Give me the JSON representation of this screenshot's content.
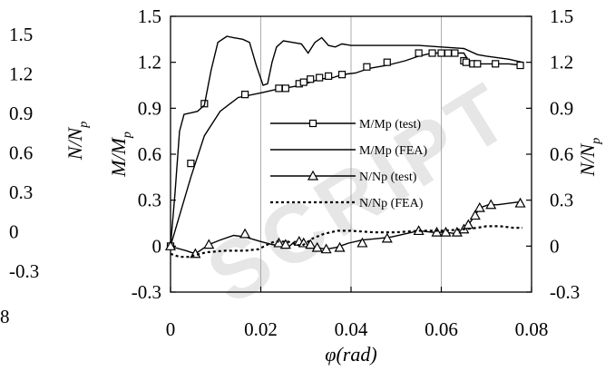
{
  "chart_data": {
    "type": "line",
    "title": "",
    "xlabel": "φ(rad)",
    "ylabel_left": "M/M",
    "ylabel_left_sub": "p",
    "ylabel_right": "N/N",
    "ylabel_right_sub": "p",
    "ylabel_far_left": "N/N",
    "ylabel_far_left_sub": "p",
    "xlim": [
      0,
      0.08
    ],
    "ylim": [
      -0.3,
      1.5
    ],
    "x_ticks": [
      "0",
      "0.02",
      "0.04",
      "0.06",
      "0.08"
    ],
    "y_ticks": [
      "-0.3",
      "0",
      "0.3",
      "0.6",
      "0.9",
      "1.2",
      "1.5"
    ],
    "far_left_ticks": [
      "-0.3",
      "0",
      "0.3",
      "0.6",
      "0.9",
      "1.2",
      "1.5"
    ],
    "far_left_clipped_label": "8",
    "grid": "vertical",
    "legend_position": "center-right",
    "watermark": "SCRIPT",
    "series": [
      {
        "name": "M/Mp (test)",
        "style": "solid",
        "marker": "square",
        "color": "#000000",
        "x": [
          0,
          0.0045,
          0.0075,
          0.011,
          0.015,
          0.02,
          0.023,
          0.025,
          0.027,
          0.029,
          0.031,
          0.033,
          0.036,
          0.038,
          0.041,
          0.044,
          0.048,
          0.052,
          0.055,
          0.058,
          0.06,
          0.062,
          0.0635,
          0.065,
          0.066,
          0.067,
          0.069,
          0.072,
          0.075,
          0.078
        ],
        "y": [
          0,
          0.45,
          0.72,
          0.88,
          0.97,
          1.0,
          1.02,
          1.03,
          1.04,
          1.05,
          1.07,
          1.09,
          1.1,
          1.12,
          1.13,
          1.16,
          1.18,
          1.21,
          1.24,
          1.26,
          1.26,
          1.26,
          1.26,
          1.26,
          1.21,
          1.19,
          1.19,
          1.19,
          1.19,
          1.18
        ],
        "marker_x": [
          0,
          0.0045,
          0.0075,
          0.0165,
          0.024,
          0.0255,
          0.0285,
          0.0295,
          0.031,
          0.033,
          0.035,
          0.038,
          0.0435,
          0.048,
          0.055,
          0.058,
          0.06,
          0.0615,
          0.063,
          0.065,
          0.0655,
          0.067,
          0.068,
          0.072,
          0.0775
        ],
        "marker_y": [
          0,
          0.54,
          0.93,
          0.99,
          1.03,
          1.03,
          1.06,
          1.07,
          1.09,
          1.1,
          1.11,
          1.12,
          1.17,
          1.2,
          1.26,
          1.26,
          1.26,
          1.26,
          1.26,
          1.21,
          1.2,
          1.19,
          1.19,
          1.19,
          1.18
        ]
      },
      {
        "name": "M/Mp (FEA)",
        "style": "solid",
        "marker": "none",
        "color": "#000000",
        "x": [
          0,
          0.001,
          0.002,
          0.003,
          0.0045,
          0.006,
          0.0075,
          0.009,
          0.0105,
          0.0125,
          0.014,
          0.016,
          0.0175,
          0.019,
          0.0205,
          0.0215,
          0.0225,
          0.0235,
          0.025,
          0.027,
          0.029,
          0.0305,
          0.032,
          0.0335,
          0.035,
          0.0365,
          0.038,
          0.04,
          0.045,
          0.05,
          0.055,
          0.06,
          0.065,
          0.068,
          0.07,
          0.075,
          0.078
        ],
        "y": [
          0,
          0.35,
          0.75,
          0.86,
          0.87,
          0.88,
          0.92,
          1.15,
          1.33,
          1.37,
          1.36,
          1.35,
          1.33,
          1.18,
          1.05,
          1.06,
          1.2,
          1.3,
          1.34,
          1.33,
          1.32,
          1.26,
          1.33,
          1.36,
          1.31,
          1.3,
          1.32,
          1.31,
          1.31,
          1.31,
          1.31,
          1.3,
          1.29,
          1.25,
          1.24,
          1.22,
          1.2
        ]
      },
      {
        "name": "N/Np (test)",
        "style": "solid",
        "marker": "triangle",
        "color": "#000000",
        "x": [
          0,
          0.001,
          0.0035,
          0.0055,
          0.0085,
          0.011,
          0.014,
          0.0165,
          0.02,
          0.0225,
          0.0245,
          0.026,
          0.0275,
          0.029,
          0.0305,
          0.0325,
          0.0345,
          0.0365,
          0.0395,
          0.0425,
          0.046,
          0.049,
          0.052,
          0.055,
          0.058,
          0.061,
          0.0635,
          0.065,
          0.066,
          0.0675,
          0.0685,
          0.0705,
          0.0725,
          0.0775
        ],
        "y": [
          0,
          -0.01,
          -0.03,
          -0.05,
          0.01,
          0.04,
          0.07,
          0.06,
          0.03,
          0.01,
          0.0,
          -0.01,
          0.03,
          0.03,
          0.0,
          -0.01,
          -0.02,
          -0.01,
          0.02,
          0.04,
          0.05,
          0.06,
          0.08,
          0.1,
          0.09,
          0.09,
          0.08,
          0.11,
          0.14,
          0.2,
          0.25,
          0.27,
          0.27,
          0.29
        ],
        "marker_x": [
          0,
          0.0055,
          0.0085,
          0.0165,
          0.024,
          0.0255,
          0.0285,
          0.0295,
          0.031,
          0.0325,
          0.0345,
          0.0375,
          0.0425,
          0.048,
          0.055,
          0.059,
          0.061,
          0.0635,
          0.065,
          0.066,
          0.0675,
          0.0685,
          0.071,
          0.0775
        ],
        "marker_y": [
          0,
          -0.05,
          0.01,
          0.08,
          0.02,
          0.01,
          0.03,
          0.02,
          0.01,
          -0.01,
          -0.02,
          -0.01,
          0.02,
          0.05,
          0.1,
          0.09,
          0.09,
          0.09,
          0.11,
          0.14,
          0.2,
          0.25,
          0.27,
          0.28
        ]
      },
      {
        "name": "N/Np (FEA)",
        "style": "dotted",
        "marker": "none",
        "color": "#000000",
        "x": [
          0,
          0.002,
          0.004,
          0.008,
          0.012,
          0.0165,
          0.0195,
          0.0215,
          0.023,
          0.026,
          0.029,
          0.0315,
          0.034,
          0.037,
          0.04,
          0.045,
          0.05,
          0.055,
          0.06,
          0.065,
          0.068,
          0.07,
          0.073,
          0.076,
          0.078
        ],
        "y": [
          -0.05,
          -0.07,
          -0.07,
          -0.04,
          -0.03,
          -0.03,
          -0.02,
          0.01,
          0.03,
          0.03,
          0.0,
          0.05,
          0.08,
          0.1,
          0.1,
          0.09,
          0.09,
          0.1,
          0.1,
          0.11,
          0.12,
          0.13,
          0.13,
          0.12,
          0.12
        ]
      }
    ]
  }
}
